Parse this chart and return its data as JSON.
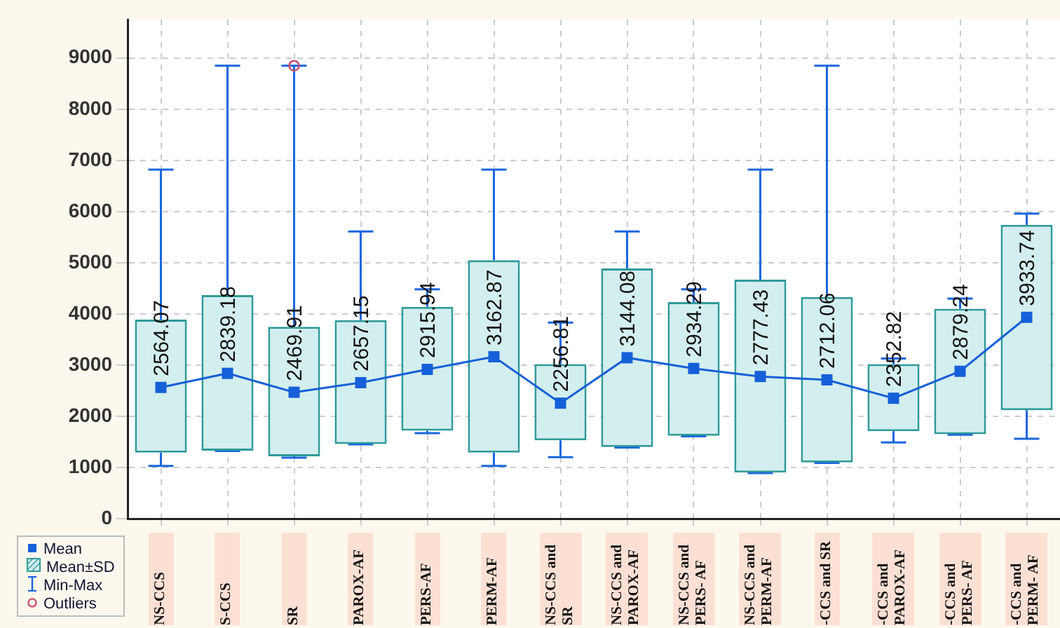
{
  "chart_data": {
    "type": "box",
    "categories": [
      "NS-CCS",
      "S-CCS",
      "SR",
      "PAROX-AF",
      "PERS-AF",
      "PERM-AF",
      "NS-CCS and SR",
      "NS-CCS and PAROX-AF",
      "NS-CCS and PERS- AF",
      "NS-CCS and PERM-AF",
      "-CCS and SR",
      "-CCS and PAROX-AF",
      "-CCS and PERS- AF",
      "-CCS and PERM- AF"
    ],
    "boxes": [
      {
        "low": 1030,
        "q1": 1290,
        "median": 2564.07,
        "q3": 3890,
        "high": 6820
      },
      {
        "low": 1320,
        "q1": 1330,
        "median": 2839.18,
        "q3": 4370,
        "high": 8850
      },
      {
        "low": 1190,
        "q1": 1220,
        "median": 2469.91,
        "q3": 3750,
        "high": 8850,
        "outliers": [
          8850
        ]
      },
      {
        "low": 1450,
        "q1": 1460,
        "median": 2657.15,
        "q3": 3880,
        "high": 5610
      },
      {
        "low": 1670,
        "q1": 1720,
        "median": 2915.94,
        "q3": 4140,
        "high": 4480
      },
      {
        "low": 1030,
        "q1": 1290,
        "median": 3162.87,
        "q3": 5050,
        "high": 6820
      },
      {
        "low": 1200,
        "q1": 1530,
        "median": 2256.81,
        "q3": 3020,
        "high": 3830
      },
      {
        "low": 1390,
        "q1": 1400,
        "median": 3144.08,
        "q3": 4890,
        "high": 5610
      },
      {
        "low": 1610,
        "q1": 1620,
        "median": 2934.29,
        "q3": 4230,
        "high": 4480
      },
      {
        "low": 890,
        "q1": 900,
        "median": 2777.43,
        "q3": 4670,
        "high": 6820
      },
      {
        "low": 1090,
        "q1": 1100,
        "median": 2712.06,
        "q3": 4330,
        "high": 8850
      },
      {
        "low": 1490,
        "q1": 1710,
        "median": 2352.82,
        "q3": 3020,
        "high": 3130
      },
      {
        "low": 1640,
        "q1": 1650,
        "median": 2879.24,
        "q3": 4100,
        "high": 4300
      },
      {
        "low": 1560,
        "q1": 2120,
        "median": 3933.74,
        "q3": 5740,
        "high": 5960
      }
    ],
    "series": [
      {
        "name": "Mean",
        "type": "line",
        "color": "#1560d8",
        "values": [
          2564.07,
          2839.18,
          2469.91,
          2657.15,
          2915.94,
          3162.87,
          2256.81,
          3144.08,
          2934.29,
          2777.43,
          2712.06,
          2352.82,
          2879.24,
          3933.74
        ]
      }
    ],
    "ylim": [
      0,
      9750
    ],
    "yticks": [
      0,
      1000,
      2000,
      3000,
      4000,
      5000,
      6000,
      7000,
      8000,
      9000
    ],
    "grid": true,
    "data_labels": true,
    "legend": "bottom left",
    "annotations": [
      "Mean±SD",
      "Min-Max",
      "Outliers"
    ]
  }
}
